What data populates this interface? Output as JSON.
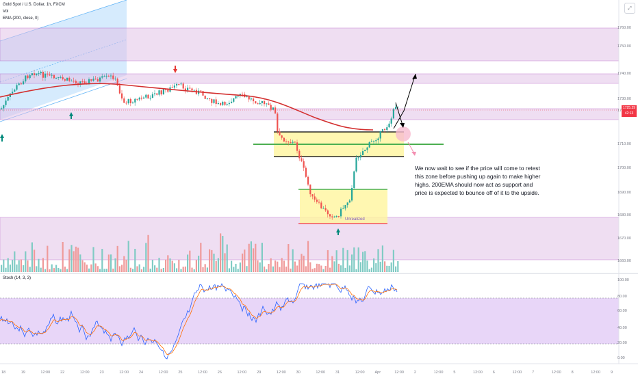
{
  "header": {
    "symbol_line": "Gold Spot / U.S. Dollar, 1h, FXCM",
    "vol_label": "Vol",
    "ema_label": "EMA (200, close, 0)",
    "stoch_label": "Stoch (14, 3, 3)",
    "compare_icon": "expand-icon"
  },
  "price_axis": {
    "ticks": [
      "1760.00",
      "1750.00",
      "1740.00",
      "1730.00",
      "1720.00",
      "1710.00",
      "1700.00",
      "1690.00",
      "1680.00",
      "1670.00",
      "1660.00"
    ],
    "current_price": "1725.29",
    "current_time": "42:13"
  },
  "stoch_axis": {
    "ticks": [
      "100.00",
      "80.00",
      "60.00",
      "40.00",
      "20.00",
      "0.00"
    ]
  },
  "time_axis": {
    "ticks": [
      "18",
      "19",
      "12:00",
      "22",
      "12:00",
      "23",
      "12:00",
      "24",
      "12:00",
      "25",
      "12:00",
      "26",
      "12:00",
      "29",
      "12:00",
      "30",
      "12:00",
      "31",
      "12:00",
      "Apr",
      "12:00",
      "2",
      "12:00",
      "5",
      "12:00",
      "6",
      "12:00",
      "7",
      "12:00",
      "8",
      "12:00",
      "9"
    ]
  },
  "annotations": {
    "analysis_note": "We now wait to see if the price will come to retest this zone before pushing up again to make higher highs. 200EMA should now act as support and price is expected to bounce off of it to the upside.",
    "zone_label": "Unrealized"
  },
  "colors": {
    "up": "#26a69a",
    "down": "#ef5350",
    "ema": "#d32f2f",
    "zone_purple": "#e1bee7",
    "zone_yellow": "#fff59d",
    "channel_blue": "#bbdefb",
    "stoch_k": "#2962ff",
    "stoch_d": "#ff6d00",
    "stoch_bg": "#e6d2f7"
  }
}
